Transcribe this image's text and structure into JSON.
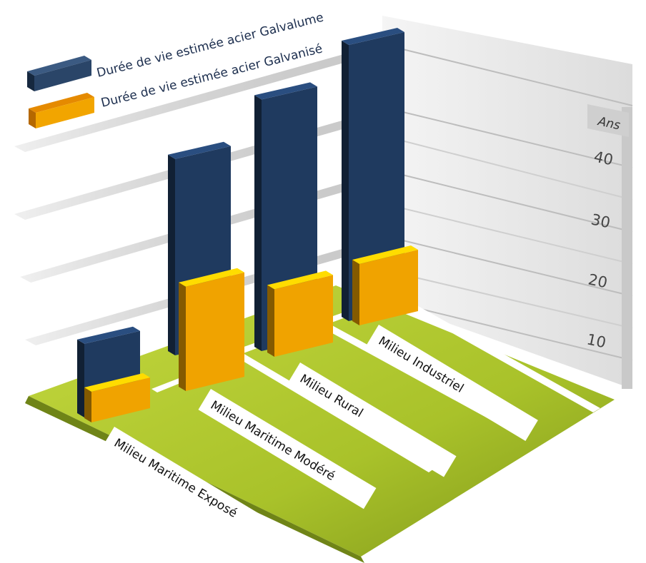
{
  "chart_data": {
    "type": "bar",
    "title": "",
    "xlabel": "",
    "ylabel": "Ans",
    "categories": [
      "Milieu  Maritime  Exposé",
      "Milieu Maritime  Modéré",
      "Milieu Rural",
      "Milieu Industriel"
    ],
    "series": [
      {
        "name": "Durée de vie estimée  acier  Galvalume",
        "values": [
          12,
          32,
          41,
          45
        ],
        "color": "#1f3a5f"
      },
      {
        "name": "Durée de vie estimée acier Galvanisé",
        "values": [
          5,
          17,
          11,
          10
        ],
        "color": "#f0a300"
      }
    ],
    "yticks": [
      "10",
      "20",
      "30",
      "40"
    ],
    "ylim": [
      0,
      50
    ],
    "grid": true,
    "legend": "top-left",
    "floor_color": "#a7c22a",
    "wall_color": "#e9e9e9"
  }
}
